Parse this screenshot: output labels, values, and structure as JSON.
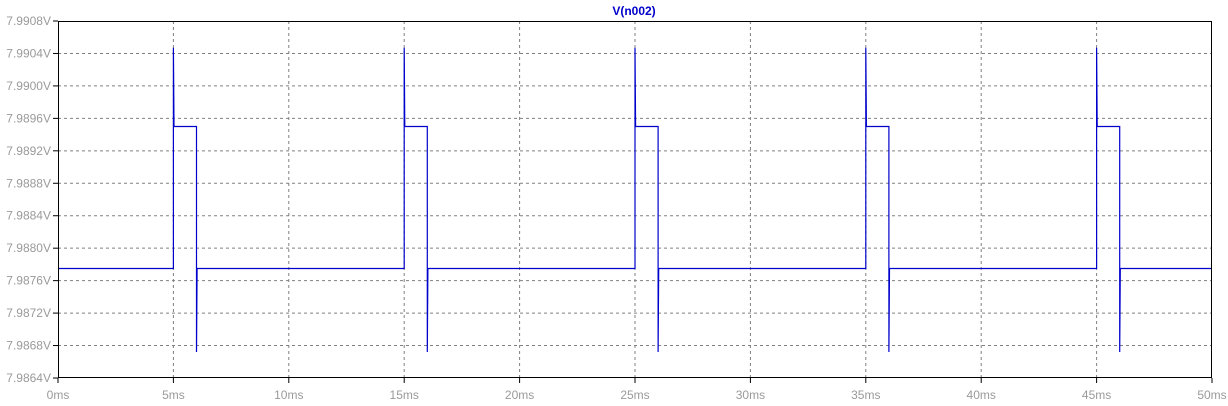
{
  "chart_data": {
    "type": "line",
    "title": "V(n002)",
    "x_tick_labels": [
      "0ms",
      "5ms",
      "10ms",
      "15ms",
      "20ms",
      "25ms",
      "30ms",
      "35ms",
      "40ms",
      "45ms",
      "50ms"
    ],
    "y_tick_labels": [
      "7.9908V",
      "7.9904V",
      "7.9900V",
      "7.9896V",
      "7.9892V",
      "7.9888V",
      "7.9884V",
      "7.9880V",
      "7.9876V",
      "7.9872V",
      "7.9868V",
      "7.9864V"
    ],
    "xlim_ms": [
      0,
      50
    ],
    "ylim_v": [
      7.9864,
      7.9908
    ],
    "grid": true,
    "grid_style": "dashed",
    "colors": {
      "trace": "#0000cc",
      "grid": "#808080",
      "frame": "#000000",
      "tick_text": "#9a9a9a"
    },
    "series": [
      {
        "name": "V(n002)",
        "baseline_v": 7.98775,
        "pulses": [
          {
            "start_ms": 5,
            "end_ms": 6,
            "high_v": 7.9895,
            "spike_peak_v": 7.99047,
            "spike_min_v": 7.98672
          },
          {
            "start_ms": 15,
            "end_ms": 16,
            "high_v": 7.9895,
            "spike_peak_v": 7.99047,
            "spike_min_v": 7.98672
          },
          {
            "start_ms": 25,
            "end_ms": 26,
            "high_v": 7.9895,
            "spike_peak_v": 7.99047,
            "spike_min_v": 7.98672
          },
          {
            "start_ms": 35,
            "end_ms": 36,
            "high_v": 7.9895,
            "spike_peak_v": 7.99047,
            "spike_min_v": 7.98672
          },
          {
            "start_ms": 45,
            "end_ms": 46,
            "high_v": 7.9895,
            "spike_peak_v": 7.99047,
            "spike_min_v": 7.98672
          }
        ]
      }
    ]
  }
}
